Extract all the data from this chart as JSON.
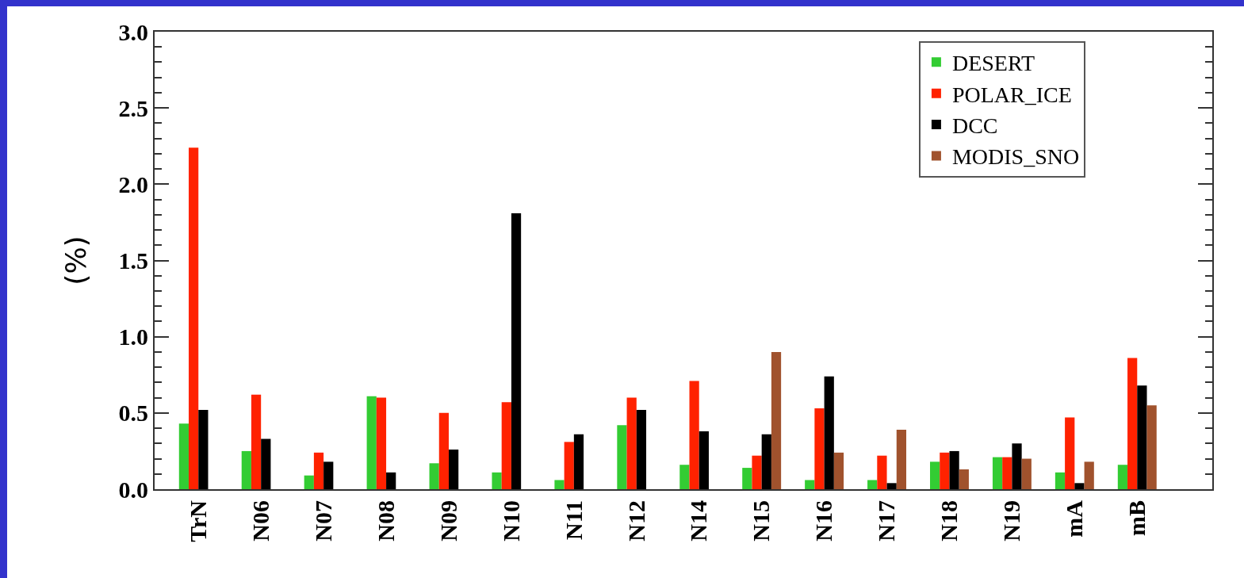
{
  "chart_data": {
    "type": "bar",
    "ylabel": "(%)",
    "categories": [
      "TrN",
      "N06",
      "N07",
      "N08",
      "N09",
      "N10",
      "N11",
      "N12",
      "N14",
      "N15",
      "N16",
      "N17",
      "N18",
      "N19",
      "mA",
      "mB"
    ],
    "series": [
      {
        "name": "DESERT",
        "color": "#33cc33",
        "values": [
          0.43,
          0.25,
          0.09,
          0.61,
          0.17,
          0.11,
          0.06,
          0.42,
          0.16,
          0.14,
          0.06,
          0.06,
          0.18,
          0.21,
          0.11,
          0.16
        ]
      },
      {
        "name": "POLAR_ICE",
        "color": "#ff2200",
        "values": [
          2.24,
          0.62,
          0.24,
          0.6,
          0.5,
          0.57,
          0.31,
          0.6,
          0.71,
          0.22,
          0.53,
          0.22,
          0.24,
          0.21,
          0.47,
          0.86
        ]
      },
      {
        "name": "DCC",
        "color": "#000000",
        "values": [
          0.52,
          0.33,
          0.18,
          0.11,
          0.26,
          1.81,
          0.36,
          0.52,
          0.38,
          0.36,
          0.74,
          0.04,
          0.25,
          0.3,
          0.04,
          0.68
        ]
      },
      {
        "name": "MODIS_SNO",
        "color": "#a0522d",
        "values": [
          null,
          null,
          null,
          null,
          null,
          null,
          null,
          null,
          null,
          0.9,
          0.24,
          0.39,
          0.13,
          0.2,
          0.18,
          0.55
        ]
      }
    ],
    "ylim": [
      0,
      3
    ],
    "yticks": [
      {
        "value": 0,
        "label": "0.0"
      },
      {
        "value": 0.5,
        "label": "0.5"
      },
      {
        "value": 1,
        "label": "1.0"
      },
      {
        "value": 1.5,
        "label": "1.5"
      },
      {
        "value": 2,
        "label": "2.0"
      },
      {
        "value": 2.5,
        "label": "2.5"
      },
      {
        "value": 3,
        "label": "3.0"
      }
    ],
    "grid": false,
    "legend": "top right"
  }
}
